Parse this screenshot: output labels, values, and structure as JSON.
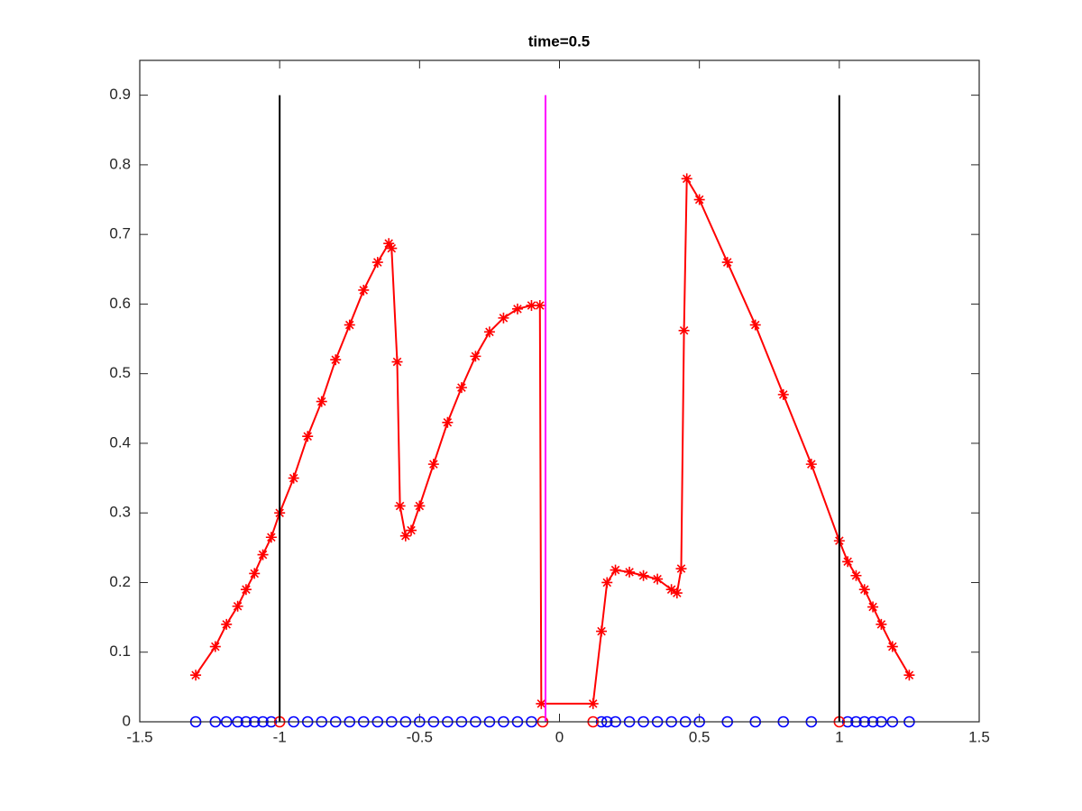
{
  "chart_data": {
    "type": "line",
    "title": "time=0.5",
    "xlim": [
      -1.5,
      1.5
    ],
    "ylim": [
      0,
      0.95
    ],
    "xticks": [
      -1.5,
      -1,
      -0.5,
      0,
      0.5,
      1,
      1.5
    ],
    "yticks": [
      0,
      0.1,
      0.2,
      0.3,
      0.4,
      0.5,
      0.6,
      0.7,
      0.8,
      0.9
    ],
    "series": [
      {
        "color": "#ff0000",
        "marker": "*",
        "linestyle": "solid",
        "x": [
          -1.3,
          -1.23,
          -1.19,
          -1.15,
          -1.12,
          -1.09,
          -1.06,
          -1.03,
          -1.0,
          -0.95,
          -0.9,
          -0.85,
          -0.8,
          -0.75,
          -0.7,
          -0.65,
          -0.61,
          -0.6,
          -0.58,
          -0.57,
          -0.55,
          -0.53,
          -0.5,
          -0.45,
          -0.4,
          -0.35,
          -0.3,
          -0.25,
          -0.2,
          -0.15,
          -0.1,
          -0.07,
          -0.065,
          0.12,
          0.15,
          0.17,
          0.2,
          0.25,
          0.3,
          0.35,
          0.4,
          0.42,
          0.435,
          0.445,
          0.455,
          0.5,
          0.6,
          0.7,
          0.8,
          0.9,
          1.0,
          1.03,
          1.06,
          1.09,
          1.12,
          1.15,
          1.19,
          1.25
        ],
        "values": [
          0.067,
          0.108,
          0.14,
          0.166,
          0.19,
          0.213,
          0.24,
          0.265,
          0.3,
          0.35,
          0.41,
          0.46,
          0.52,
          0.57,
          0.62,
          0.66,
          0.687,
          0.68,
          0.517,
          0.31,
          0.267,
          0.275,
          0.31,
          0.37,
          0.43,
          0.48,
          0.525,
          0.56,
          0.58,
          0.593,
          0.598,
          0.598,
          0.026,
          0.026,
          0.13,
          0.2,
          0.218,
          0.215,
          0.21,
          0.205,
          0.19,
          0.185,
          0.22,
          0.562,
          0.78,
          0.75,
          0.66,
          0.57,
          0.47,
          0.37,
          0.26,
          0.23,
          0.21,
          0.19,
          0.165,
          0.14,
          0.108,
          0.067
        ]
      },
      {
        "color": "#0000ff",
        "marker": "o",
        "linestyle": "none",
        "x": [
          -1.3,
          -1.23,
          -1.19,
          -1.15,
          -1.12,
          -1.09,
          -1.06,
          -1.03,
          -0.95,
          -0.9,
          -0.85,
          -0.8,
          -0.75,
          -0.7,
          -0.65,
          -0.6,
          -0.55,
          -0.5,
          -0.45,
          -0.4,
          -0.35,
          -0.3,
          -0.25,
          -0.2,
          -0.15,
          -0.1,
          0.15,
          0.17,
          0.2,
          0.25,
          0.3,
          0.35,
          0.4,
          0.45,
          0.5,
          0.6,
          0.7,
          0.8,
          0.9,
          1.03,
          1.06,
          1.09,
          1.12,
          1.15,
          1.19,
          1.25
        ],
        "values": [
          0,
          0,
          0,
          0,
          0,
          0,
          0,
          0,
          0,
          0,
          0,
          0,
          0,
          0,
          0,
          0,
          0,
          0,
          0,
          0,
          0,
          0,
          0,
          0,
          0,
          0,
          0,
          0,
          0,
          0,
          0,
          0,
          0,
          0,
          0,
          0,
          0,
          0,
          0,
          0,
          0,
          0,
          0,
          0,
          0,
          0
        ]
      },
      {
        "color": "#ff0000",
        "marker": "o",
        "linestyle": "none",
        "x": [
          -1,
          -0.06,
          0.12,
          1
        ],
        "values": [
          0,
          0,
          0,
          0
        ]
      },
      {
        "color": "#000000",
        "marker": "none",
        "linestyle": "solid",
        "x": [
          -1,
          -1
        ],
        "values": [
          0,
          0.9
        ]
      },
      {
        "color": "#000000",
        "marker": "none",
        "linestyle": "solid",
        "x": [
          1,
          1
        ],
        "values": [
          0,
          0.9
        ]
      },
      {
        "color": "#ff00ff",
        "marker": "none",
        "linestyle": "solid",
        "x": [
          -0.05,
          -0.05
        ],
        "values": [
          0,
          0.9
        ]
      }
    ]
  }
}
